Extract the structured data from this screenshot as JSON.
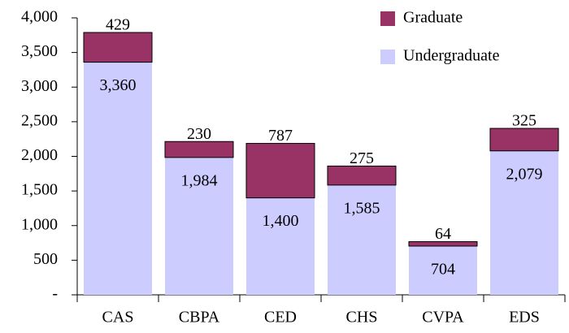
{
  "chart_data": {
    "type": "stacked_bar",
    "categories": [
      "CAS",
      "CBPA",
      "CED",
      "CHS",
      "CVPA",
      "EDS"
    ],
    "series": [
      {
        "name": "Undergraduate",
        "color": "#ccccff",
        "values": [
          3360,
          1984,
          1400,
          1585,
          704,
          2079
        ],
        "value_labels": [
          "3,360",
          "1,984",
          "1,400",
          "1,585",
          "704",
          "2,079"
        ]
      },
      {
        "name": "Graduate",
        "color": "#993366",
        "values": [
          429,
          230,
          787,
          275,
          64,
          325
        ]
      }
    ],
    "ylim": [
      0,
      4000
    ],
    "yticks": [
      {
        "value": 0,
        "label": "-"
      },
      500,
      {
        "value": 1000,
        "label": "1,000"
      },
      {
        "value": 1500,
        "label": "1,500"
      },
      {
        "value": 2000,
        "label": "2,000"
      },
      {
        "value": 2500,
        "label": "2,500"
      },
      {
        "value": 3000,
        "label": "3,000"
      },
      {
        "value": 3500,
        "label": "3,500"
      },
      {
        "value": 4000,
        "label": "4,000"
      }
    ],
    "legend": "upper right"
  }
}
